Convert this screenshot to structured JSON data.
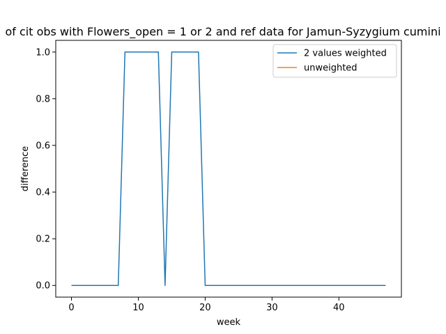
{
  "chart_data": {
    "type": "line",
    "title": "of cit obs with Flowers_open = 1 or 2 and ref data for Jamun-Syzygium cumini",
    "xlabel": "week",
    "ylabel": "difference",
    "xlim": [
      -2.35,
      49.35
    ],
    "ylim": [
      -0.05,
      1.05
    ],
    "xticks": [
      0,
      10,
      20,
      30,
      40
    ],
    "yticks": [
      0.0,
      0.2,
      0.4,
      0.6,
      0.8,
      1.0
    ],
    "xtick_labels": [
      "0",
      "10",
      "20",
      "30",
      "40"
    ],
    "ytick_labels": [
      "0.0",
      "0.2",
      "0.4",
      "0.6",
      "0.8",
      "1.0"
    ],
    "legend_position": "top-right",
    "grid": false,
    "series": [
      {
        "name": "2 values weighted",
        "color": "#1f77b4",
        "x": [
          0,
          1,
          2,
          3,
          4,
          5,
          6,
          7,
          8,
          9,
          10,
          11,
          12,
          13,
          14,
          15,
          16,
          17,
          18,
          19,
          20,
          21,
          22,
          23,
          24,
          25,
          26,
          27,
          28,
          29,
          30,
          31,
          32,
          33,
          34,
          35,
          36,
          37,
          38,
          39,
          40,
          41,
          42,
          43,
          44,
          45,
          46,
          47
        ],
        "y": [
          0,
          0,
          0,
          0,
          0,
          0,
          0,
          0,
          1,
          1,
          1,
          1,
          1,
          1,
          0,
          1,
          1,
          1,
          1,
          1,
          0,
          0,
          0,
          0,
          0,
          0,
          0,
          0,
          0,
          0,
          0,
          0,
          0,
          0,
          0,
          0,
          0,
          0,
          0,
          0,
          0,
          0,
          0,
          0,
          0,
          0,
          0,
          0
        ]
      },
      {
        "name": "unweighted",
        "color": "#ff7f0e",
        "x": [],
        "y": []
      }
    ]
  }
}
